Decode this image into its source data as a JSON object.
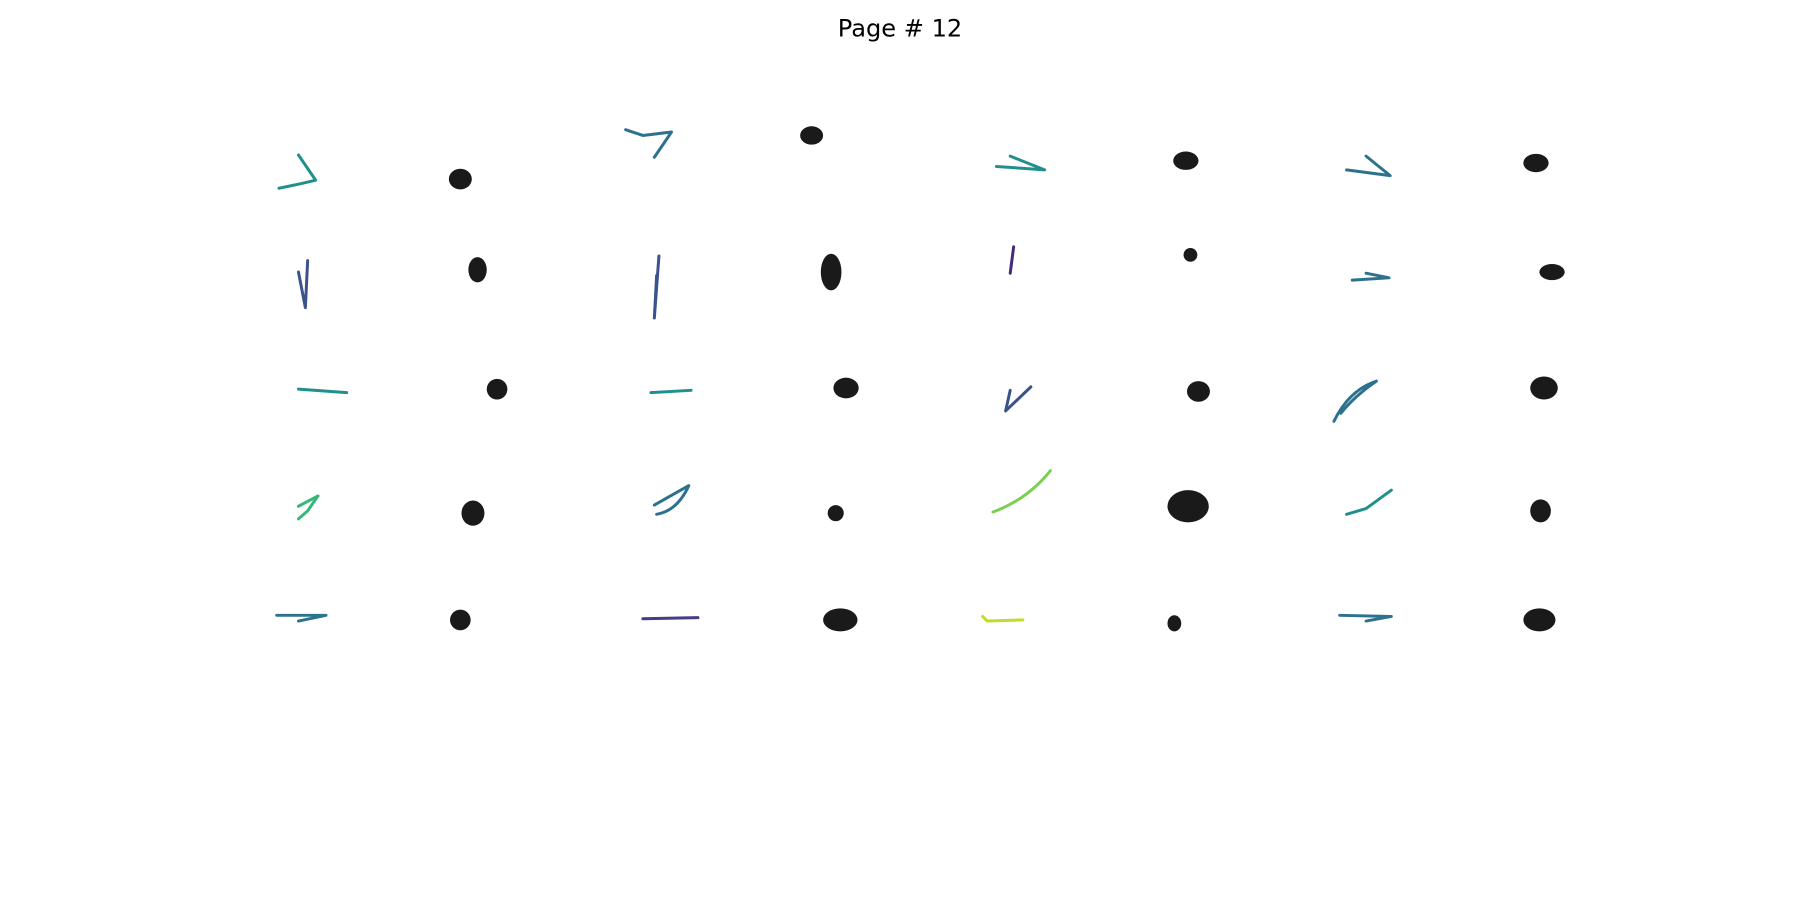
{
  "title": "Page # 12"
}
